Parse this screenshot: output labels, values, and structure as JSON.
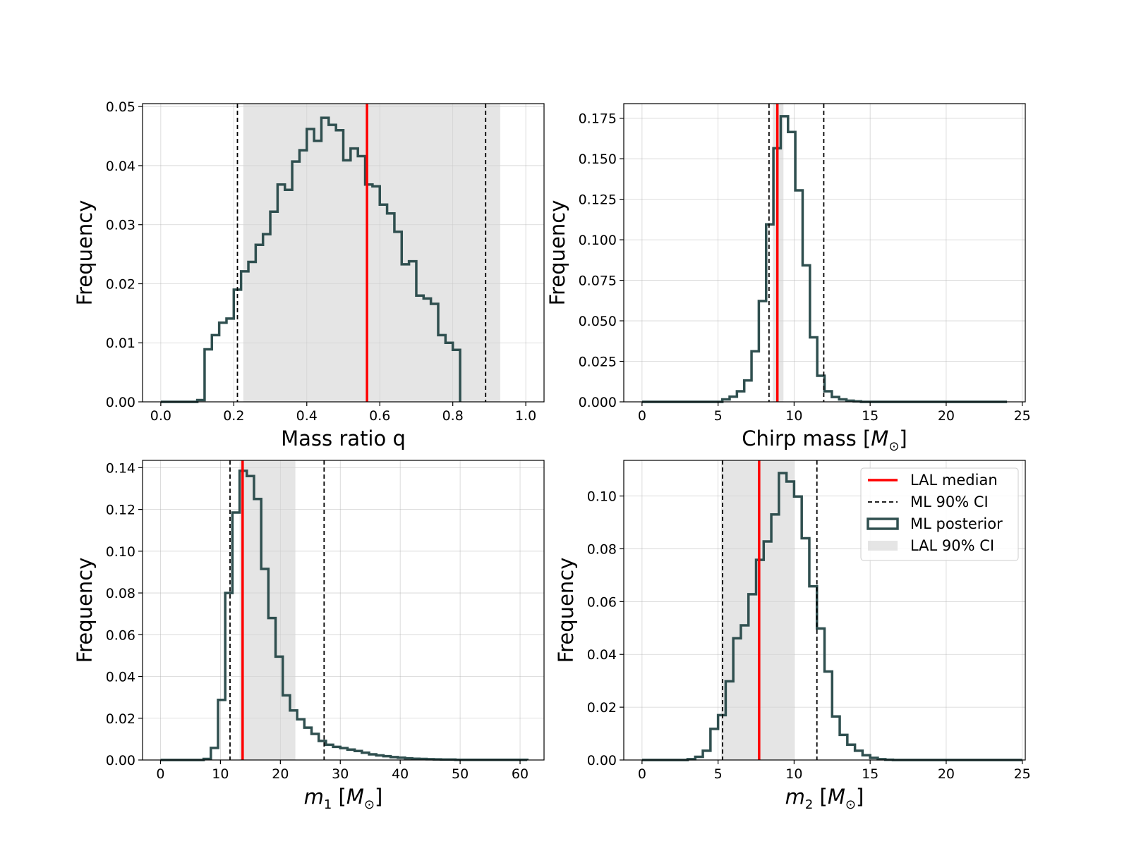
{
  "chart_data": [
    {
      "type": "histogram",
      "id": "q",
      "xlabel": "Mass ratio q",
      "ylabel": "Frequency",
      "xlim": [
        -0.05,
        1.05
      ],
      "ylim": [
        0,
        0.0505
      ],
      "xticks": [
        0.0,
        0.2,
        0.4,
        0.6,
        0.8,
        1.0
      ],
      "xtick_labels": [
        "0.0",
        "0.2",
        "0.4",
        "0.6",
        "0.8",
        "1.0"
      ],
      "yticks": [
        0,
        0.01,
        0.02,
        0.03,
        0.04,
        0.05
      ],
      "ytick_labels": [
        "0.00",
        "0.01",
        "0.02",
        "0.03",
        "0.04",
        "0.05"
      ],
      "bin_start": 0.0,
      "bin_width": 0.02,
      "values": [
        0,
        0,
        0,
        0,
        0,
        0.0003,
        0.0089,
        0.0113,
        0.0134,
        0.0141,
        0.019,
        0.0221,
        0.0237,
        0.0266,
        0.0284,
        0.0322,
        0.0368,
        0.0359,
        0.0407,
        0.0426,
        0.0462,
        0.0442,
        0.0481,
        0.0469,
        0.046,
        0.0409,
        0.0429,
        0.0416,
        0.0368,
        0.0365,
        0.0334,
        0.0319,
        0.0288,
        0.0233,
        0.0238,
        0.018,
        0.0175,
        0.0166,
        0.0113,
        0.01,
        0.0088
      ],
      "median": 0.565,
      "ml_ci": [
        0.21,
        0.89
      ],
      "lal_ci": [
        0.226,
        0.93
      ]
    },
    {
      "type": "histogram",
      "id": "chirp",
      "xlabel": "Chirp mass [",
      "xlabel_symbol": "M",
      "xlabel_sub": "⊙",
      "xlabel_end": "]",
      "ylabel": "Frequency",
      "xlim": [
        -1.2,
        25.2
      ],
      "ylim": [
        0,
        0.184
      ],
      "xticks": [
        0,
        5,
        10,
        15,
        20,
        25
      ],
      "xtick_labels": [
        "0",
        "5",
        "10",
        "15",
        "20",
        "25"
      ],
      "yticks": [
        0,
        0.025,
        0.05,
        0.075,
        0.1,
        0.125,
        0.15,
        0.175
      ],
      "ytick_labels": [
        "0.000",
        "0.025",
        "0.050",
        "0.075",
        "0.100",
        "0.125",
        "0.150",
        "0.175"
      ],
      "bin_start": 0.0,
      "bin_width": 0.48,
      "values": [
        0,
        0,
        0,
        0,
        0,
        0,
        0,
        0,
        0,
        0,
        0,
        0.0015,
        0.0032,
        0.0065,
        0.0132,
        0.0312,
        0.0622,
        0.1095,
        0.1565,
        0.1762,
        0.1665,
        0.1305,
        0.0842,
        0.0398,
        0.0161,
        0.0065,
        0.003,
        0.0015,
        0.0007,
        0.0003,
        0,
        0,
        0,
        0,
        0,
        0,
        0,
        0,
        0,
        0,
        0,
        0,
        0,
        0,
        0,
        0,
        0,
        0,
        0,
        0
      ],
      "median": 8.9,
      "ml_ci": [
        8.35,
        11.95
      ],
      "lal_ci": [
        8.6,
        9.3
      ]
    },
    {
      "type": "histogram",
      "id": "m1",
      "xlabel": "m",
      "xlabel_sub": "1",
      "xlabel_unit": "[",
      "xlabel_symbol": "M",
      "xlabel_sub2": "⊙",
      "xlabel_end": "]",
      "ylabel": "Frequency",
      "xlim": [
        -3.0,
        64.0
      ],
      "ylim": [
        0,
        0.1435
      ],
      "xticks": [
        0,
        10,
        20,
        30,
        40,
        50,
        60
      ],
      "xtick_labels": [
        "0",
        "10",
        "20",
        "30",
        "40",
        "50",
        "60"
      ],
      "yticks": [
        0,
        0.02,
        0.04,
        0.06,
        0.08,
        0.1,
        0.12,
        0.14
      ],
      "ytick_labels": [
        "0.00",
        "0.02",
        "0.04",
        "0.06",
        "0.08",
        "0.10",
        "0.12",
        "0.14"
      ],
      "bin_start": 0.0,
      "bin_width": 1.2,
      "values": [
        0,
        0,
        0,
        0,
        0,
        0,
        0.0005,
        0.0058,
        0.0288,
        0.08,
        0.1185,
        0.1385,
        0.136,
        0.125,
        0.0915,
        0.068,
        0.0495,
        0.031,
        0.0237,
        0.0195,
        0.0155,
        0.0125,
        0.0091,
        0.0073,
        0.0063,
        0.0057,
        0.005,
        0.0043,
        0.0035,
        0.0027,
        0.0022,
        0.0018,
        0.0014,
        0.0011,
        0.0008,
        0.0006,
        0.0005,
        0.0004,
        0.0003,
        0.0002,
        0.0002,
        0.0001,
        0.0001,
        0.0001,
        0.0001,
        0.0001,
        0.0001,
        0.0001,
        0.0001,
        0.0001,
        0.0001
      ],
      "median": 13.7,
      "ml_ci": [
        11.6,
        27.3
      ],
      "lal_ci": [
        13.2,
        22.5
      ]
    },
    {
      "type": "histogram",
      "id": "m2",
      "xlabel": "m",
      "xlabel_sub": "2",
      "xlabel_unit": "[",
      "xlabel_symbol": "M",
      "xlabel_sub2": "⊙",
      "xlabel_end": "]",
      "ylabel": "Frequency",
      "xlim": [
        -1.2,
        25.2
      ],
      "ylim": [
        0,
        0.1135
      ],
      "xticks": [
        0,
        5,
        10,
        15,
        20,
        25
      ],
      "xtick_labels": [
        "0",
        "5",
        "10",
        "15",
        "20",
        "25"
      ],
      "yticks": [
        0,
        0.02,
        0.04,
        0.06,
        0.08,
        0.1
      ],
      "ytick_labels": [
        "0.00",
        "0.02",
        "0.04",
        "0.06",
        "0.08",
        "0.10"
      ],
      "bin_start": 0.0,
      "bin_width": 0.5,
      "values": [
        0,
        0,
        0,
        0,
        0,
        0,
        0.0003,
        0.0012,
        0.0035,
        0.0118,
        0.017,
        0.0298,
        0.0461,
        0.051,
        0.0628,
        0.0758,
        0.0828,
        0.093,
        0.1087,
        0.1055,
        0.0998,
        0.084,
        0.0658,
        0.0498,
        0.0335,
        0.0165,
        0.0095,
        0.0058,
        0.0035,
        0.0018,
        0.0008,
        0.0003,
        0.0001,
        0,
        0,
        0,
        0,
        0,
        0,
        0,
        0,
        0,
        0,
        0,
        0,
        0,
        0,
        0,
        0,
        0
      ],
      "median": 7.7,
      "ml_ci": [
        5.3,
        11.5
      ],
      "lal_ci": [
        5.2,
        10.0
      ]
    }
  ],
  "legend": {
    "location": "upper right",
    "colors": {
      "median": "#ff0000",
      "hist": "#2f4f4f",
      "band": "#d3d3d3"
    },
    "items": [
      {
        "label": "LAL median",
        "kind": "red-line"
      },
      {
        "label": "ML 90% CI",
        "kind": "dashed-line"
      },
      {
        "label": "ML posterior",
        "kind": "outline-box"
      },
      {
        "label": "LAL 90% CI",
        "kind": "grey-patch"
      }
    ]
  }
}
